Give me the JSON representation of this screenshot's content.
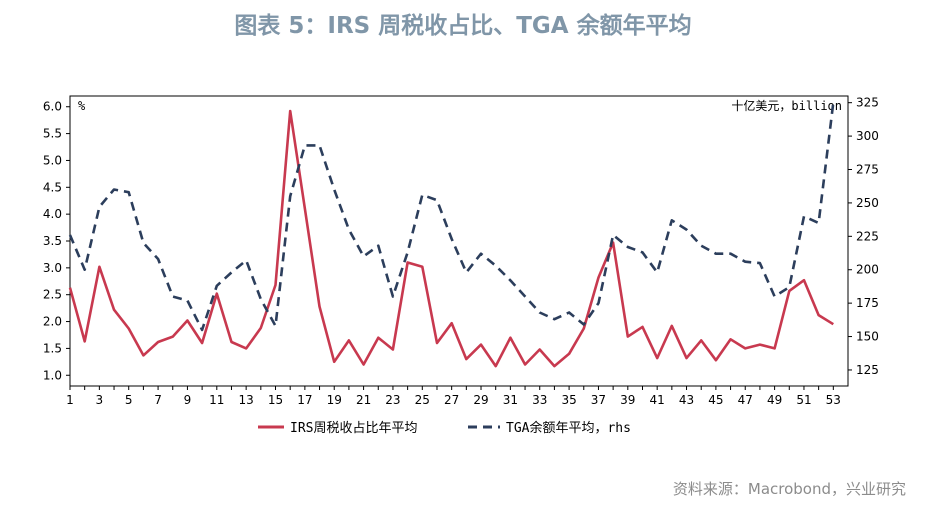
{
  "title": "图表 5：IRS 周税收占比、TGA 余额年平均",
  "source": "资料来源：Macrobond，兴业研究",
  "chart_data": {
    "type": "line",
    "x": [
      1,
      2,
      3,
      4,
      5,
      6,
      7,
      8,
      9,
      10,
      11,
      12,
      13,
      14,
      15,
      16,
      17,
      18,
      19,
      20,
      21,
      22,
      23,
      24,
      25,
      26,
      27,
      28,
      29,
      30,
      31,
      32,
      33,
      34,
      35,
      36,
      37,
      38,
      39,
      40,
      41,
      42,
      43,
      44,
      45,
      46,
      47,
      48,
      49,
      50,
      51,
      52,
      53
    ],
    "xticks": [
      1,
      3,
      5,
      7,
      9,
      11,
      13,
      15,
      17,
      19,
      21,
      23,
      25,
      27,
      29,
      31,
      33,
      35,
      37,
      39,
      41,
      43,
      45,
      47,
      49,
      51,
      53
    ],
    "xlim": [
      1,
      54
    ],
    "ylim_left": [
      0.8,
      6.2
    ],
    "yticks_left": [
      1.0,
      1.5,
      2.0,
      2.5,
      3.0,
      3.5,
      4.0,
      4.5,
      5.0,
      5.5,
      6.0
    ],
    "ylabel_left": "%",
    "ylim_right": [
      113,
      330
    ],
    "yticks_right": [
      125,
      150,
      175,
      200,
      225,
      250,
      275,
      300,
      325
    ],
    "ylabel_right": "十亿美元，billion",
    "legend_position": "bottom",
    "series": [
      {
        "name": "IRS周税收占比年平均",
        "axis": "left",
        "color": "#c8394f",
        "style": "solid",
        "values": [
          2.63,
          1.63,
          3.02,
          2.22,
          1.87,
          1.37,
          1.62,
          1.72,
          2.02,
          1.6,
          2.52,
          1.62,
          1.5,
          1.88,
          2.68,
          5.92,
          4.1,
          2.28,
          1.25,
          1.65,
          1.2,
          1.7,
          1.48,
          3.1,
          3.02,
          1.6,
          1.97,
          1.3,
          1.57,
          1.17,
          1.7,
          1.2,
          1.48,
          1.17,
          1.4,
          1.87,
          2.82,
          3.47,
          1.72,
          1.9,
          1.32,
          1.92,
          1.32,
          1.65,
          1.28,
          1.67,
          1.5,
          1.57,
          1.5,
          2.57,
          2.77,
          2.12,
          1.95
        ]
      },
      {
        "name": "TGA余额年平均，rhs",
        "axis": "right",
        "color": "#2c3e5c",
        "style": "dashed",
        "values": [
          226,
          200,
          247,
          260,
          258,
          220,
          208,
          180,
          177,
          155,
          188,
          198,
          207,
          178,
          158,
          255,
          293,
          293,
          260,
          230,
          210,
          218,
          180,
          213,
          256,
          252,
          223,
          198,
          212,
          203,
          192,
          180,
          168,
          163,
          168,
          159,
          175,
          226,
          217,
          213,
          198,
          237,
          230,
          218,
          212,
          212,
          206,
          205,
          180,
          187,
          240,
          235,
          325
        ]
      }
    ]
  }
}
